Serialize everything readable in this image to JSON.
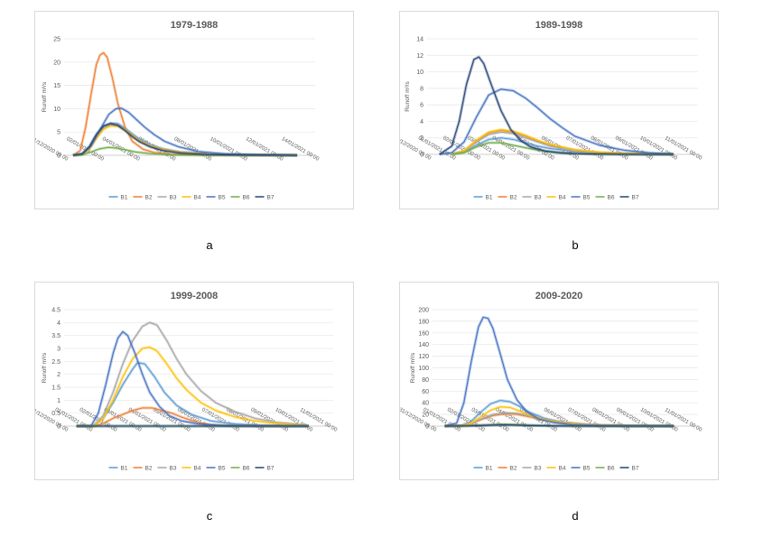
{
  "colors": {
    "B1": "#5b9bd5",
    "B2": "#ed7d31",
    "B3": "#a5a5a5",
    "B4": "#ffc000",
    "B5": "#4472c4",
    "B6": "#70ad47",
    "B7": "#264478"
  },
  "panel_letters": [
    "a",
    "b",
    "c",
    "d"
  ],
  "chart_data": [
    {
      "type": "line",
      "title": "1979-1988",
      "ylabel": "Runoff m³/s",
      "ylim": [
        0,
        25
      ],
      "yticks": [
        0,
        5,
        10,
        15,
        20,
        25
      ],
      "xticks": [
        "31/12/2020 00:00",
        "02/01/2021 00:00",
        "04/01/2021 00:00",
        "06/01/2021 00:00",
        "08/01/2021 00:00",
        "10/01/2021 00:00",
        "12/01/2021 00:00",
        "14/01/2021 00:00"
      ],
      "xrange": [
        0,
        14
      ],
      "legend": "bottom",
      "series": [
        {
          "name": "B1",
          "x": [
            0.5,
            1.0,
            1.4,
            1.8,
            2.2,
            2.6,
            3.0,
            3.4,
            3.8,
            4.2,
            4.8,
            5.5,
            6.5,
            8.0,
            10.0,
            12.0,
            13.0
          ],
          "values": [
            0,
            0.2,
            1.5,
            4.0,
            6.2,
            6.9,
            6.8,
            5.8,
            4.6,
            3.5,
            2.3,
            1.4,
            0.7,
            0.3,
            0.1,
            0.05,
            0
          ]
        },
        {
          "name": "B2",
          "x": [
            0.5,
            0.9,
            1.2,
            1.5,
            1.8,
            2.0,
            2.2,
            2.4,
            2.7,
            3.0,
            3.4,
            3.8,
            4.4,
            5.0,
            6.0,
            8.0,
            10.0,
            13.0
          ],
          "values": [
            0,
            1.0,
            6.0,
            13.0,
            19.5,
            21.5,
            22.0,
            21.0,
            16.5,
            11.0,
            6.0,
            3.0,
            1.3,
            0.6,
            0.2,
            0.05,
            0,
            0
          ]
        },
        {
          "name": "B3",
          "x": [
            0.5,
            1.0,
            1.4,
            1.8,
            2.2,
            2.6,
            3.0,
            3.4,
            3.8,
            4.2,
            4.8,
            5.5,
            6.5,
            8.0,
            10.0,
            13.0
          ],
          "values": [
            0,
            0.2,
            1.4,
            3.8,
            5.9,
            6.6,
            6.5,
            5.6,
            4.4,
            3.3,
            2.1,
            1.3,
            0.6,
            0.25,
            0.05,
            0
          ]
        },
        {
          "name": "B4",
          "x": [
            0.5,
            1.0,
            1.4,
            1.8,
            2.2,
            2.6,
            3.0,
            3.4,
            3.8,
            4.2,
            4.8,
            5.5,
            6.5,
            8.0,
            10.0,
            13.0
          ],
          "values": [
            0,
            0.2,
            1.3,
            3.6,
            5.6,
            6.3,
            6.2,
            5.4,
            4.2,
            3.1,
            2.0,
            1.2,
            0.6,
            0.25,
            0.05,
            0
          ]
        },
        {
          "name": "B5",
          "x": [
            0.5,
            1.0,
            1.5,
            2.0,
            2.5,
            2.9,
            3.2,
            3.6,
            4.0,
            4.5,
            5.0,
            5.6,
            6.4,
            7.5,
            9.0,
            11.0,
            13.0
          ],
          "values": [
            0,
            0.3,
            2.0,
            5.5,
            8.8,
            10.0,
            10.1,
            9.2,
            7.8,
            6.0,
            4.5,
            3.0,
            1.8,
            0.8,
            0.3,
            0.1,
            0
          ]
        },
        {
          "name": "B6",
          "x": [
            0.5,
            1.0,
            1.5,
            2.0,
            2.5,
            3.0,
            3.5,
            4.0,
            4.8,
            6.0,
            8.0,
            13.0
          ],
          "values": [
            0,
            0.1,
            0.7,
            1.4,
            1.7,
            1.5,
            1.1,
            0.7,
            0.35,
            0.1,
            0,
            0
          ]
        },
        {
          "name": "B7",
          "x": [
            0.5,
            1.0,
            1.4,
            1.8,
            2.2,
            2.6,
            3.0,
            3.4,
            3.8,
            4.2,
            4.8,
            5.5,
            6.5,
            8.0,
            10.0,
            13.0
          ],
          "values": [
            0,
            0.3,
            1.8,
            4.5,
            6.3,
            6.8,
            6.4,
            5.3,
            4.0,
            2.9,
            1.8,
            1.0,
            0.45,
            0.15,
            0.05,
            0
          ]
        }
      ]
    },
    {
      "type": "line",
      "title": "1989-1998",
      "ylabel": "Runoff m³/s",
      "ylim": [
        0,
        14
      ],
      "yticks": [
        0,
        2,
        4,
        6,
        8,
        10,
        12,
        14
      ],
      "xticks": [
        "31/12/2020 00:00",
        "01/01/2021 00:00",
        "02/01/2021 00:00",
        "03/01/2021 00:00",
        "04/01/2021 00:00",
        "05/01/2021 00:00",
        "06/01/2021 00:00",
        "07/01/2021 00:00",
        "08/01/2021 00:00",
        "09/01/2021 00:00",
        "10/01/2021 00:00",
        "11/01/2021 00:00"
      ],
      "xrange": [
        0,
        11
      ],
      "legend": "bottom",
      "series": [
        {
          "name": "B1",
          "x": [
            1.0,
            1.5,
            2.0,
            2.5,
            3.0,
            3.5,
            4.0,
            4.5,
            5.0,
            6.0,
            7.0,
            8.0,
            9.0,
            10.0
          ],
          "values": [
            0,
            0.3,
            1.1,
            1.8,
            2.0,
            1.8,
            1.4,
            1.0,
            0.7,
            0.35,
            0.15,
            0.05,
            0,
            0
          ]
        },
        {
          "name": "B2",
          "x": [
            1.0,
            1.5,
            2.0,
            2.5,
            3.0,
            3.5,
            4.0,
            4.5,
            5.0,
            6.0,
            7.0,
            8.0,
            9.0,
            10.0
          ],
          "values": [
            0,
            0.4,
            1.6,
            2.6,
            2.9,
            2.7,
            2.2,
            1.6,
            1.1,
            0.5,
            0.2,
            0.1,
            0.05,
            0
          ]
        },
        {
          "name": "B3",
          "x": [
            1.0,
            1.5,
            2.0,
            2.5,
            3.0,
            3.5,
            4.0,
            4.5,
            5.0,
            6.0,
            7.0,
            8.0,
            9.0,
            10.0
          ],
          "values": [
            0,
            0.35,
            1.5,
            2.4,
            2.7,
            2.5,
            2.0,
            1.5,
            1.0,
            0.5,
            0.2,
            0.1,
            0.05,
            0
          ]
        },
        {
          "name": "B4",
          "x": [
            1.0,
            1.5,
            2.0,
            2.5,
            3.0,
            3.5,
            4.0,
            4.5,
            5.0,
            6.0,
            7.0,
            8.0,
            9.0,
            10.0
          ],
          "values": [
            0,
            0.4,
            1.7,
            2.7,
            3.0,
            2.8,
            2.3,
            1.7,
            1.2,
            0.55,
            0.25,
            0.1,
            0.05,
            0
          ]
        },
        {
          "name": "B5",
          "x": [
            0.5,
            1.0,
            1.5,
            2.0,
            2.5,
            3.0,
            3.5,
            4.0,
            4.5,
            5.0,
            5.5,
            6.0,
            7.0,
            8.0,
            9.0,
            10.0
          ],
          "values": [
            0,
            0.2,
            1.5,
            4.5,
            7.2,
            7.9,
            7.7,
            6.8,
            5.6,
            4.3,
            3.2,
            2.2,
            1.1,
            0.5,
            0.2,
            0.05
          ]
        },
        {
          "name": "B6",
          "x": [
            1.0,
            1.5,
            2.0,
            2.5,
            3.0,
            3.5,
            4.0,
            4.5,
            5.0,
            6.0,
            7.0,
            10.0
          ],
          "values": [
            0,
            0.2,
            0.9,
            1.4,
            1.4,
            1.1,
            0.8,
            0.5,
            0.3,
            0.1,
            0,
            0
          ]
        },
        {
          "name": "B7",
          "x": [
            0.5,
            1.0,
            1.3,
            1.6,
            1.9,
            2.1,
            2.3,
            2.6,
            3.0,
            3.4,
            3.8,
            4.2,
            4.8,
            5.5,
            6.5,
            8.0,
            10.0
          ],
          "values": [
            0,
            1.0,
            4.0,
            8.5,
            11.5,
            11.8,
            11.0,
            8.5,
            5.3,
            3.0,
            1.7,
            0.9,
            0.4,
            0.15,
            0.05,
            0,
            0
          ]
        }
      ]
    },
    {
      "type": "line",
      "title": "1999-2008",
      "ylabel": "Runoff m³/s",
      "ylim": [
        0,
        4.5
      ],
      "yticks": [
        0,
        0.5,
        1,
        1.5,
        2,
        2.5,
        3,
        3.5,
        4,
        4.5
      ],
      "xticks": [
        "31/12/2020 00:00",
        "01/01/2021 00:00",
        "02/01/2021 00:00",
        "03/01/2021 00:00",
        "04/01/2021 00:00",
        "05/01/2021 00:00",
        "06/01/2021 00:00",
        "07/01/2021 00:00",
        "08/01/2021 00:00",
        "09/01/2021 00:00",
        "10/01/2021 00:00",
        "11/01/2021 00:00"
      ],
      "xrange": [
        0,
        11
      ],
      "legend": "bottom",
      "series": [
        {
          "name": "B1",
          "x": [
            0.5,
            1.2,
            1.6,
            2.0,
            2.4,
            2.8,
            3.0,
            3.3,
            3.7,
            4.1,
            4.6,
            5.2,
            6.0,
            7.0,
            8.0,
            9.0,
            10.0
          ],
          "values": [
            0,
            0,
            0.3,
            0.9,
            1.6,
            2.2,
            2.45,
            2.4,
            1.9,
            1.3,
            0.8,
            0.45,
            0.2,
            0.08,
            0.03,
            0,
            0
          ]
        },
        {
          "name": "B2",
          "x": [
            0.5,
            1.3,
            1.6,
            2.0,
            2.4,
            2.8,
            3.2,
            3.6,
            4.0,
            4.4,
            4.8,
            5.2,
            5.6,
            6.0,
            7.0,
            8.0,
            9.0,
            10.0
          ],
          "values": [
            0,
            0,
            0.1,
            0.3,
            0.45,
            0.6,
            0.7,
            0.7,
            0.6,
            0.5,
            0.35,
            0.22,
            0.12,
            0.05,
            0,
            0,
            0,
            0
          ]
        },
        {
          "name": "B3",
          "x": [
            0.5,
            1.2,
            1.6,
            2.0,
            2.4,
            2.8,
            3.2,
            3.5,
            3.8,
            4.2,
            4.6,
            5.0,
            5.6,
            6.2,
            7.0,
            7.8,
            8.6,
            9.5,
            10.0
          ],
          "values": [
            0,
            0,
            0.4,
            1.3,
            2.4,
            3.3,
            3.85,
            4.0,
            3.9,
            3.3,
            2.6,
            2.0,
            1.35,
            0.9,
            0.55,
            0.3,
            0.15,
            0.08,
            0
          ]
        },
        {
          "name": "B4",
          "x": [
            0.5,
            1.2,
            1.6,
            2.0,
            2.4,
            2.8,
            3.2,
            3.5,
            3.8,
            4.2,
            4.6,
            5.0,
            5.6,
            6.2,
            7.0,
            7.8,
            8.6,
            9.5,
            10.0
          ],
          "values": [
            0,
            0,
            0.3,
            1.0,
            1.9,
            2.6,
            3.0,
            3.05,
            2.9,
            2.4,
            1.85,
            1.4,
            0.9,
            0.6,
            0.35,
            0.2,
            0.1,
            0.05,
            0
          ]
        },
        {
          "name": "B5",
          "x": [
            0.5,
            1.1,
            1.4,
            1.7,
            2.0,
            2.2,
            2.4,
            2.6,
            2.9,
            3.2,
            3.5,
            3.9,
            4.3,
            4.8,
            5.5,
            6.5,
            8.0,
            10.0
          ],
          "values": [
            0,
            0,
            0.5,
            1.6,
            2.8,
            3.4,
            3.65,
            3.5,
            2.8,
            2.0,
            1.3,
            0.75,
            0.4,
            0.2,
            0.08,
            0.02,
            0,
            0
          ]
        },
        {
          "name": "B6",
          "x": [
            0.5,
            2.0,
            4.0,
            6.0,
            8.0,
            10.0
          ],
          "values": [
            0,
            0,
            0,
            0,
            0,
            0
          ]
        },
        {
          "name": "B7",
          "x": [
            0.5,
            3.0,
            6.0,
            10.0
          ],
          "values": [
            0,
            0,
            0,
            0
          ]
        }
      ]
    },
    {
      "type": "line",
      "title": "2009-2020",
      "ylabel": "Runoff m³/s",
      "ylim": [
        0,
        200
      ],
      "yticks": [
        0,
        20,
        40,
        60,
        80,
        100,
        120,
        140,
        160,
        180,
        200
      ],
      "xticks": [
        "31/12/2020 00:00",
        "01/01/2021 00:00",
        "02/01/2021 00:00",
        "03/01/2021 00:00",
        "04/01/2021 00:00",
        "05/01/2021 00:00",
        "06/01/2021 00:00",
        "07/01/2021 00:00",
        "08/01/2021 00:00",
        "09/01/2021 00:00",
        "10/01/2021 00:00",
        "11/01/2021 00:00"
      ],
      "xrange": [
        0,
        11
      ],
      "legend": "bottom",
      "series": [
        {
          "name": "B1",
          "x": [
            0.5,
            1.2,
            1.6,
            2.0,
            2.4,
            2.8,
            3.2,
            3.6,
            4.0,
            4.6,
            5.4,
            6.5,
            8.0,
            10.0
          ],
          "values": [
            0,
            1,
            8,
            24,
            38,
            44,
            42,
            34,
            24,
            14,
            6,
            2,
            0.5,
            0
          ]
        },
        {
          "name": "B2",
          "x": [
            0.5,
            1.2,
            1.6,
            2.0,
            2.5,
            3.0,
            3.5,
            4.0,
            4.6,
            5.4,
            6.5,
            8.0,
            10.0
          ],
          "values": [
            0,
            0.5,
            4,
            11,
            18,
            21,
            20,
            16,
            11,
            6,
            2,
            0.5,
            0
          ]
        },
        {
          "name": "B3",
          "x": [
            0.5,
            1.2,
            1.6,
            2.0,
            2.5,
            3.0,
            3.5,
            4.0,
            4.6,
            5.4,
            6.5,
            8.0,
            10.0
          ],
          "values": [
            0,
            0.5,
            4,
            12,
            20,
            23,
            22,
            18,
            12,
            6,
            2,
            0.5,
            0
          ]
        },
        {
          "name": "B4",
          "x": [
            0.5,
            1.2,
            1.6,
            2.0,
            2.4,
            2.8,
            3.2,
            3.6,
            4.0,
            4.6,
            5.4,
            6.5,
            8.0,
            10.0
          ],
          "values": [
            0,
            0.5,
            5,
            16,
            27,
            33,
            32,
            26,
            19,
            11,
            5,
            1.5,
            0.3,
            0
          ]
        },
        {
          "name": "B5",
          "x": [
            0.5,
            1.0,
            1.3,
            1.6,
            1.9,
            2.1,
            2.3,
            2.5,
            2.8,
            3.1,
            3.5,
            3.9,
            4.4,
            5.0,
            5.8,
            7.0,
            8.5,
            10.0
          ],
          "values": [
            0,
            5,
            40,
            110,
            170,
            187,
            185,
            168,
            125,
            80,
            45,
            25,
            12,
            6,
            2,
            0.5,
            0,
            0
          ]
        },
        {
          "name": "B6",
          "x": [
            0.5,
            1.5,
            2.0,
            2.5,
            3.0,
            3.5,
            4.0,
            5.0,
            6.0,
            10.0
          ],
          "values": [
            0,
            0.5,
            1.5,
            2.5,
            3,
            2.5,
            1.5,
            0.5,
            0,
            0
          ]
        },
        {
          "name": "B7",
          "x": [
            0.5,
            1.5,
            2.0,
            2.5,
            3.0,
            3.5,
            4.0,
            5.0,
            6.0,
            10.0
          ],
          "values": [
            0,
            0.3,
            1,
            1.6,
            2,
            1.6,
            1,
            0.3,
            0,
            0
          ]
        }
      ]
    }
  ]
}
